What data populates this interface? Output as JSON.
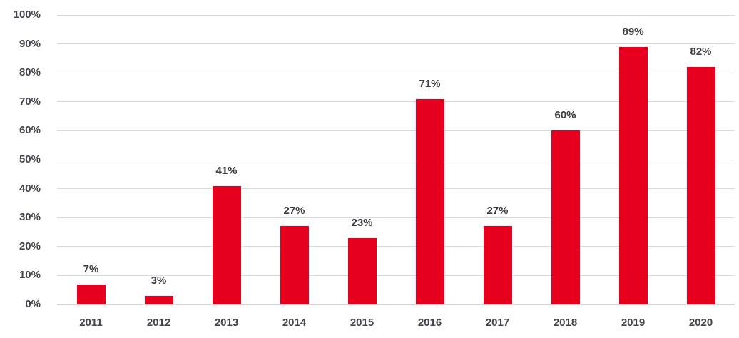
{
  "chart_data": {
    "type": "bar",
    "title": "",
    "xlabel": "",
    "ylabel": "",
    "categories": [
      "2011",
      "2012",
      "2013",
      "2014",
      "2015",
      "2016",
      "2017",
      "2018",
      "2019",
      "2020"
    ],
    "values": [
      7,
      3,
      41,
      27,
      23,
      71,
      27,
      60,
      89,
      82
    ],
    "data_labels": [
      "7%",
      "3%",
      "41%",
      "27%",
      "23%",
      "71%",
      "27%",
      "60%",
      "89%",
      "82%"
    ],
    "ylim": [
      0,
      100
    ],
    "ytick_step": 10,
    "ytick_labels": [
      "0%",
      "10%",
      "20%",
      "30%",
      "40%",
      "50%",
      "60%",
      "70%",
      "80%",
      "90%",
      "100%"
    ],
    "grid": true,
    "legend_position": "none",
    "colors": {
      "bar": "#e6001e",
      "gridline": "#dadada",
      "axis_line": "#d2d2d2",
      "tick_label": "#45444c",
      "value_label": "#3c3b43",
      "background": "#ffffff"
    }
  }
}
